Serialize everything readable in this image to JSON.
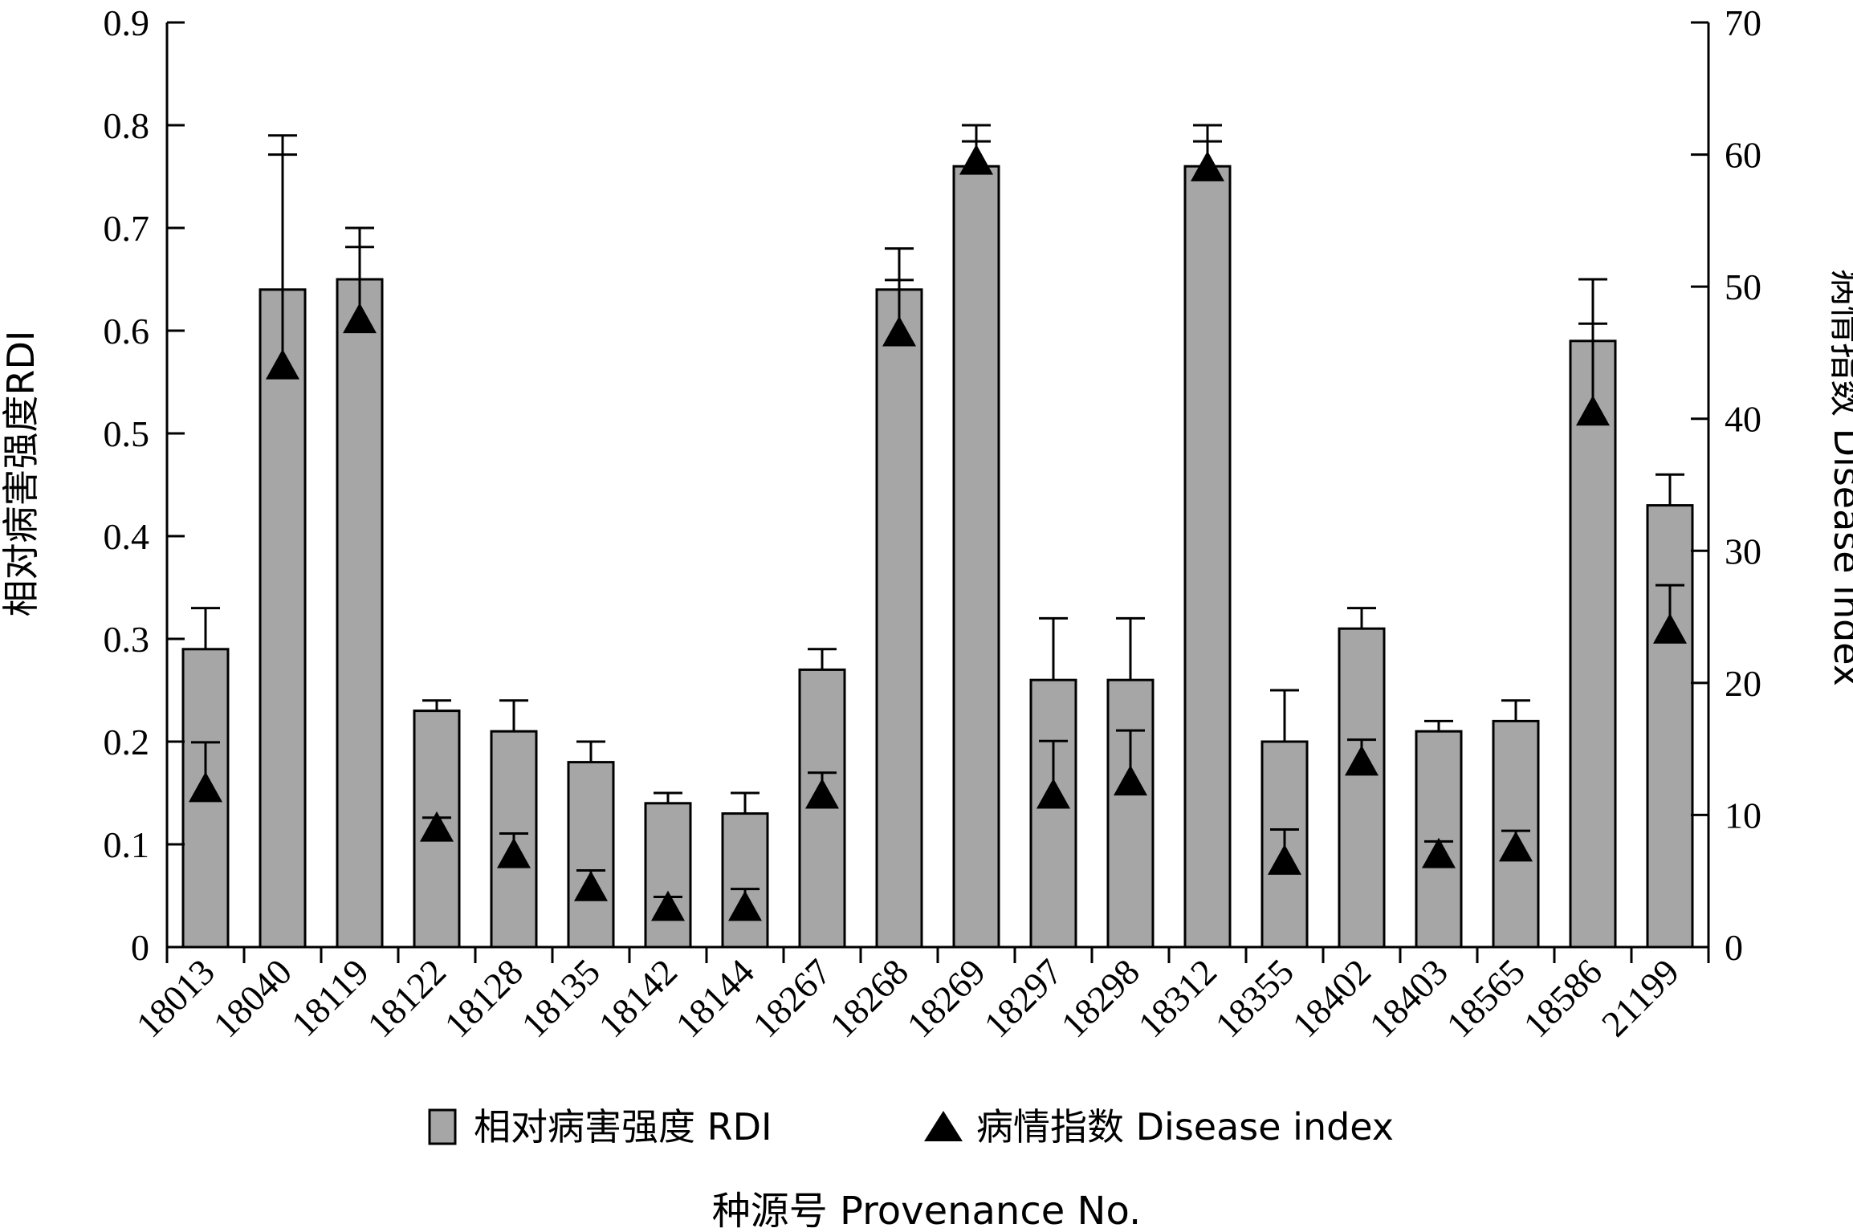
{
  "chart_data": {
    "type": "bar",
    "xlabel": "种源号  Provenance No.",
    "ylabel_left": "相对病害强度RDI",
    "ylabel_right": "病情指数  Disease index",
    "ylim_left": [
      0,
      0.9
    ],
    "yticks_left": [
      "0",
      "0.1",
      "0.2",
      "0.3",
      "0.4",
      "0.5",
      "0.6",
      "0.7",
      "0.8",
      "0.9"
    ],
    "ylim_right": [
      0,
      70
    ],
    "yticks_right": [
      "0",
      "10",
      "20",
      "30",
      "40",
      "50",
      "60",
      "70"
    ],
    "categories": [
      "18013",
      "18040",
      "18119",
      "18122",
      "18128",
      "18135",
      "18142",
      "18144",
      "18267",
      "18268",
      "18269",
      "18297",
      "18298",
      "18312",
      "18355",
      "18402",
      "18403",
      "18565",
      "18586",
      "21199"
    ],
    "legend": {
      "placement": "bottom",
      "bar_label": "相对病害强度  RDI",
      "marker_label": "病情指数  Disease index"
    },
    "series": [
      {
        "name": "相对病害强度  RDI",
        "kind": "bar",
        "axis": "left",
        "color": "#a6a6a6",
        "values": [
          0.29,
          0.64,
          0.65,
          0.23,
          0.21,
          0.18,
          0.14,
          0.13,
          0.27,
          0.64,
          0.76,
          0.26,
          0.26,
          0.76,
          0.2,
          0.31,
          0.21,
          0.22,
          0.59,
          0.43
        ],
        "error_upper": [
          0.33,
          0.79,
          0.7,
          0.24,
          0.24,
          0.2,
          0.15,
          0.15,
          0.29,
          0.68,
          0.8,
          0.32,
          0.32,
          0.8,
          0.25,
          0.33,
          0.22,
          0.24,
          0.65,
          0.46
        ]
      },
      {
        "name": "病情指数  Disease index",
        "kind": "marker",
        "axis": "right",
        "color": "#000000",
        "values": [
          12.0,
          44.0,
          47.5,
          9.0,
          7.0,
          4.5,
          3.0,
          3.0,
          11.5,
          46.5,
          59.5,
          11.5,
          12.5,
          59.0,
          6.5,
          14.0,
          7.0,
          7.5,
          40.5,
          24.0
        ],
        "error_upper": [
          15.5,
          60.0,
          53.0,
          9.8,
          8.6,
          5.8,
          3.8,
          4.4,
          13.2,
          50.5,
          61.0,
          15.6,
          16.4,
          61.0,
          8.9,
          15.7,
          8.0,
          8.8,
          47.2,
          27.4
        ]
      }
    ]
  }
}
